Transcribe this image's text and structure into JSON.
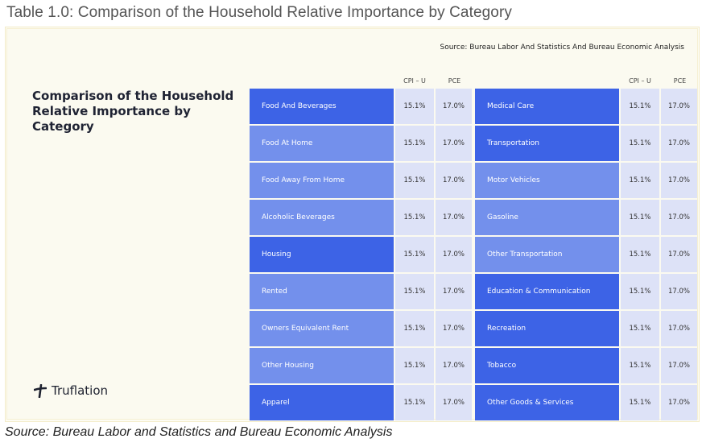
{
  "caption_top": "Table 1.0: Comparison of the Household Relative Importance by Category",
  "caption_bottom": "Source: Bureau Labor and Statistics and Bureau Economic Analysis",
  "figure": {
    "source_note": "Source: Bureau Labor And Statistics And Bureau Economic Analysis",
    "title": "Comparison of the Household Relative Importance by Category",
    "logo_text": "Truflation",
    "logo_icon": "truflation-logo-icon",
    "colors": {
      "strong_blue": "#3d63e6",
      "light_blue": "#7390ec",
      "value_cell": "#dde2f7"
    },
    "column_headers": {
      "cpi": "CPI – U",
      "pce": "PCE"
    },
    "left_table": [
      {
        "category": "Food And Beverages",
        "cpi": "15.1%",
        "pce": "17.0%",
        "shade": "strong"
      },
      {
        "category": "Food At Home",
        "cpi": "15.1%",
        "pce": "17.0%",
        "shade": "light"
      },
      {
        "category": "Food Away From Home",
        "cpi": "15.1%",
        "pce": "17.0%",
        "shade": "light"
      },
      {
        "category": "Alcoholic Beverages",
        "cpi": "15.1%",
        "pce": "17.0%",
        "shade": "light"
      },
      {
        "category": "Housing",
        "cpi": "15.1%",
        "pce": "17.0%",
        "shade": "strong"
      },
      {
        "category": "Rented",
        "cpi": "15.1%",
        "pce": "17.0%",
        "shade": "light"
      },
      {
        "category": "Owners Equivalent Rent",
        "cpi": "15.1%",
        "pce": "17.0%",
        "shade": "light"
      },
      {
        "category": "Other Housing",
        "cpi": "15.1%",
        "pce": "17.0%",
        "shade": "light"
      },
      {
        "category": "Apparel",
        "cpi": "15.1%",
        "pce": "17.0%",
        "shade": "strong"
      }
    ],
    "right_table": [
      {
        "category": "Medical Care",
        "cpi": "15.1%",
        "pce": "17.0%",
        "shade": "strong"
      },
      {
        "category": "Transportation",
        "cpi": "15.1%",
        "pce": "17.0%",
        "shade": "strong"
      },
      {
        "category": "Motor Vehicles",
        "cpi": "15.1%",
        "pce": "17.0%",
        "shade": "light"
      },
      {
        "category": "Gasoline",
        "cpi": "15.1%",
        "pce": "17.0%",
        "shade": "light"
      },
      {
        "category": "Other Transportation",
        "cpi": "15.1%",
        "pce": "17.0%",
        "shade": "light"
      },
      {
        "category": "Education & Communication",
        "cpi": "15.1%",
        "pce": "17.0%",
        "shade": "strong"
      },
      {
        "category": "Recreation",
        "cpi": "15.1%",
        "pce": "17.0%",
        "shade": "strong"
      },
      {
        "category": "Tobacco",
        "cpi": "15.1%",
        "pce": "17.0%",
        "shade": "strong"
      },
      {
        "category": "Other Goods & Services",
        "cpi": "15.1%",
        "pce": "17.0%",
        "shade": "strong"
      }
    ]
  }
}
